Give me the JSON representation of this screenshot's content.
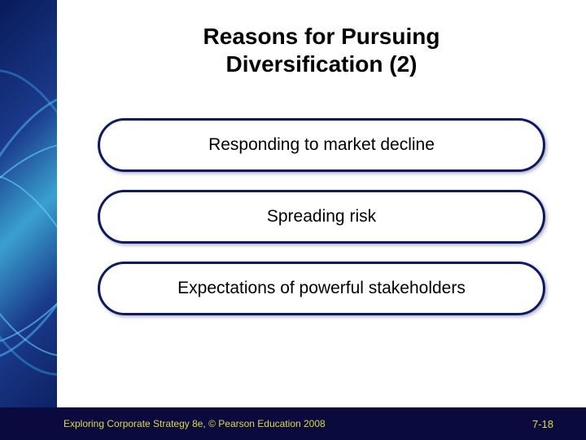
{
  "title_line1": "Reasons for Pursuing",
  "title_line2": "Diversification (2)",
  "pills": {
    "p1": "Responding to market decline",
    "p2": "Spreading risk",
    "p3": "Expectations of powerful stakeholders"
  },
  "footer": {
    "left": "Exploring Corporate Strategy 8e, © Pearson Education 2008",
    "right": "7-18"
  },
  "colors": {
    "slide_bg": "#ffffff",
    "outer_bg": "#0a0a3f",
    "pill_border": "#0d1a6b",
    "footer_text": "#dcdc3a"
  }
}
